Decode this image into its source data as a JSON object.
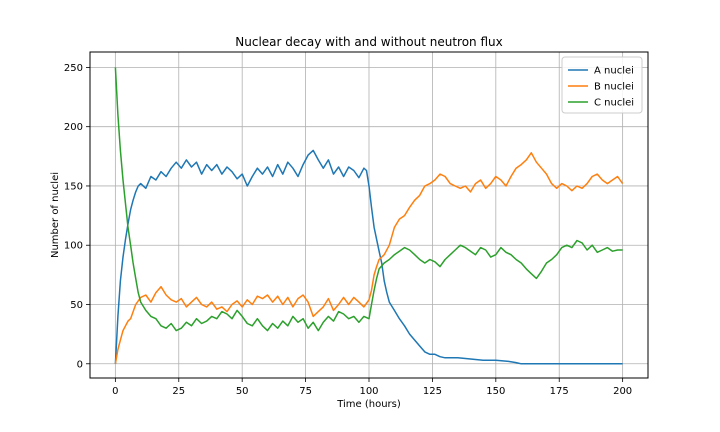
{
  "chart_data": {
    "type": "line",
    "title": "Nuclear decay with and without neutron flux",
    "xlabel": "Time (hours)",
    "ylabel": "Number of nuclei",
    "xlim": [
      -10,
      210
    ],
    "ylim": [
      -12,
      263
    ],
    "xticks": [
      0,
      25,
      50,
      75,
      100,
      125,
      150,
      175,
      200
    ],
    "yticks": [
      0,
      50,
      100,
      150,
      200,
      250
    ],
    "grid": true,
    "legend_position": "top-right",
    "series": [
      {
        "name": "A nuclei",
        "color": "#1f77b4",
        "points": [
          [
            0,
            0
          ],
          [
            1,
            40
          ],
          [
            2,
            70
          ],
          [
            3,
            90
          ],
          [
            4,
            105
          ],
          [
            5,
            118
          ],
          [
            6,
            130
          ],
          [
            7,
            138
          ],
          [
            8,
            145
          ],
          [
            9,
            150
          ],
          [
            10,
            152
          ],
          [
            12,
            148
          ],
          [
            14,
            158
          ],
          [
            16,
            155
          ],
          [
            18,
            162
          ],
          [
            20,
            158
          ],
          [
            22,
            165
          ],
          [
            24,
            170
          ],
          [
            26,
            165
          ],
          [
            28,
            172
          ],
          [
            30,
            166
          ],
          [
            32,
            170
          ],
          [
            34,
            160
          ],
          [
            36,
            168
          ],
          [
            38,
            163
          ],
          [
            40,
            168
          ],
          [
            42,
            160
          ],
          [
            44,
            166
          ],
          [
            46,
            162
          ],
          [
            48,
            156
          ],
          [
            50,
            160
          ],
          [
            52,
            150
          ],
          [
            54,
            158
          ],
          [
            56,
            165
          ],
          [
            58,
            160
          ],
          [
            60,
            166
          ],
          [
            62,
            158
          ],
          [
            64,
            168
          ],
          [
            66,
            160
          ],
          [
            68,
            170
          ],
          [
            70,
            165
          ],
          [
            72,
            158
          ],
          [
            74,
            168
          ],
          [
            76,
            176
          ],
          [
            78,
            180
          ],
          [
            80,
            172
          ],
          [
            82,
            165
          ],
          [
            84,
            172
          ],
          [
            86,
            160
          ],
          [
            88,
            166
          ],
          [
            90,
            158
          ],
          [
            92,
            166
          ],
          [
            94,
            163
          ],
          [
            96,
            157
          ],
          [
            98,
            165
          ],
          [
            99,
            163
          ],
          [
            100,
            150
          ],
          [
            101,
            132
          ],
          [
            102,
            115
          ],
          [
            103,
            105
          ],
          [
            104,
            95
          ],
          [
            105,
            85
          ],
          [
            106,
            70
          ],
          [
            107,
            60
          ],
          [
            108,
            52
          ],
          [
            110,
            45
          ],
          [
            112,
            38
          ],
          [
            114,
            32
          ],
          [
            116,
            25
          ],
          [
            118,
            20
          ],
          [
            120,
            15
          ],
          [
            122,
            10
          ],
          [
            124,
            8
          ],
          [
            126,
            8
          ],
          [
            128,
            6
          ],
          [
            130,
            5
          ],
          [
            135,
            5
          ],
          [
            140,
            4
          ],
          [
            145,
            3
          ],
          [
            150,
            3
          ],
          [
            155,
            2
          ],
          [
            158,
            1
          ],
          [
            160,
            0
          ],
          [
            170,
            0
          ],
          [
            180,
            0
          ],
          [
            190,
            0
          ],
          [
            200,
            0
          ]
        ]
      },
      {
        "name": "B nuclei",
        "color": "#ff7f0e",
        "points": [
          [
            0,
            0
          ],
          [
            1,
            12
          ],
          [
            2,
            20
          ],
          [
            3,
            28
          ],
          [
            4,
            32
          ],
          [
            5,
            36
          ],
          [
            6,
            38
          ],
          [
            8,
            50
          ],
          [
            10,
            56
          ],
          [
            12,
            58
          ],
          [
            14,
            52
          ],
          [
            16,
            60
          ],
          [
            18,
            65
          ],
          [
            20,
            58
          ],
          [
            22,
            54
          ],
          [
            24,
            52
          ],
          [
            26,
            55
          ],
          [
            28,
            48
          ],
          [
            30,
            52
          ],
          [
            32,
            56
          ],
          [
            34,
            50
          ],
          [
            36,
            48
          ],
          [
            38,
            52
          ],
          [
            40,
            46
          ],
          [
            42,
            48
          ],
          [
            44,
            44
          ],
          [
            46,
            50
          ],
          [
            48,
            53
          ],
          [
            50,
            48
          ],
          [
            52,
            54
          ],
          [
            54,
            50
          ],
          [
            56,
            57
          ],
          [
            58,
            55
          ],
          [
            60,
            58
          ],
          [
            62,
            52
          ],
          [
            64,
            57
          ],
          [
            66,
            50
          ],
          [
            68,
            56
          ],
          [
            70,
            48
          ],
          [
            72,
            55
          ],
          [
            74,
            58
          ],
          [
            76,
            52
          ],
          [
            78,
            40
          ],
          [
            80,
            44
          ],
          [
            82,
            48
          ],
          [
            84,
            55
          ],
          [
            86,
            45
          ],
          [
            88,
            50
          ],
          [
            90,
            56
          ],
          [
            92,
            50
          ],
          [
            94,
            56
          ],
          [
            96,
            52
          ],
          [
            98,
            48
          ],
          [
            100,
            54
          ],
          [
            101,
            62
          ],
          [
            102,
            75
          ],
          [
            103,
            82
          ],
          [
            104,
            88
          ],
          [
            106,
            92
          ],
          [
            108,
            100
          ],
          [
            110,
            115
          ],
          [
            112,
            122
          ],
          [
            114,
            125
          ],
          [
            116,
            132
          ],
          [
            118,
            138
          ],
          [
            120,
            142
          ],
          [
            122,
            150
          ],
          [
            124,
            152
          ],
          [
            126,
            155
          ],
          [
            128,
            160
          ],
          [
            130,
            158
          ],
          [
            132,
            152
          ],
          [
            134,
            150
          ],
          [
            136,
            148
          ],
          [
            138,
            150
          ],
          [
            140,
            145
          ],
          [
            142,
            152
          ],
          [
            144,
            155
          ],
          [
            146,
            148
          ],
          [
            148,
            152
          ],
          [
            150,
            158
          ],
          [
            152,
            155
          ],
          [
            154,
            150
          ],
          [
            156,
            158
          ],
          [
            158,
            165
          ],
          [
            160,
            168
          ],
          [
            162,
            172
          ],
          [
            164,
            178
          ],
          [
            166,
            170
          ],
          [
            168,
            165
          ],
          [
            170,
            160
          ],
          [
            172,
            152
          ],
          [
            174,
            148
          ],
          [
            176,
            152
          ],
          [
            178,
            150
          ],
          [
            180,
            146
          ],
          [
            182,
            150
          ],
          [
            184,
            148
          ],
          [
            186,
            152
          ],
          [
            188,
            158
          ],
          [
            190,
            160
          ],
          [
            192,
            155
          ],
          [
            194,
            152
          ],
          [
            196,
            155
          ],
          [
            198,
            158
          ],
          [
            200,
            152
          ]
        ]
      },
      {
        "name": "C nuclei",
        "color": "#2ca02c",
        "points": [
          [
            0,
            250
          ],
          [
            1,
            210
          ],
          [
            2,
            180
          ],
          [
            3,
            155
          ],
          [
            4,
            135
          ],
          [
            5,
            115
          ],
          [
            6,
            100
          ],
          [
            7,
            85
          ],
          [
            8,
            72
          ],
          [
            9,
            60
          ],
          [
            10,
            52
          ],
          [
            12,
            45
          ],
          [
            14,
            40
          ],
          [
            16,
            38
          ],
          [
            18,
            32
          ],
          [
            20,
            30
          ],
          [
            22,
            34
          ],
          [
            24,
            28
          ],
          [
            26,
            30
          ],
          [
            28,
            35
          ],
          [
            30,
            32
          ],
          [
            32,
            38
          ],
          [
            34,
            34
          ],
          [
            36,
            36
          ],
          [
            38,
            40
          ],
          [
            40,
            38
          ],
          [
            42,
            44
          ],
          [
            44,
            42
          ],
          [
            46,
            38
          ],
          [
            48,
            45
          ],
          [
            50,
            40
          ],
          [
            52,
            34
          ],
          [
            54,
            32
          ],
          [
            56,
            38
          ],
          [
            58,
            32
          ],
          [
            60,
            28
          ],
          [
            62,
            34
          ],
          [
            64,
            30
          ],
          [
            66,
            36
          ],
          [
            68,
            32
          ],
          [
            70,
            40
          ],
          [
            72,
            35
          ],
          [
            74,
            38
          ],
          [
            76,
            30
          ],
          [
            78,
            35
          ],
          [
            80,
            28
          ],
          [
            82,
            35
          ],
          [
            84,
            40
          ],
          [
            86,
            36
          ],
          [
            88,
            44
          ],
          [
            90,
            42
          ],
          [
            92,
            38
          ],
          [
            94,
            40
          ],
          [
            96,
            35
          ],
          [
            98,
            40
          ],
          [
            100,
            38
          ],
          [
            101,
            50
          ],
          [
            102,
            62
          ],
          [
            103,
            72
          ],
          [
            104,
            80
          ],
          [
            106,
            85
          ],
          [
            108,
            88
          ],
          [
            110,
            92
          ],
          [
            112,
            95
          ],
          [
            114,
            98
          ],
          [
            116,
            96
          ],
          [
            118,
            92
          ],
          [
            120,
            88
          ],
          [
            122,
            85
          ],
          [
            124,
            88
          ],
          [
            126,
            86
          ],
          [
            128,
            82
          ],
          [
            130,
            88
          ],
          [
            132,
            92
          ],
          [
            134,
            96
          ],
          [
            136,
            100
          ],
          [
            138,
            98
          ],
          [
            140,
            95
          ],
          [
            142,
            92
          ],
          [
            144,
            98
          ],
          [
            146,
            96
          ],
          [
            148,
            90
          ],
          [
            150,
            92
          ],
          [
            152,
            98
          ],
          [
            154,
            94
          ],
          [
            156,
            92
          ],
          [
            158,
            88
          ],
          [
            160,
            85
          ],
          [
            162,
            80
          ],
          [
            164,
            76
          ],
          [
            166,
            72
          ],
          [
            168,
            78
          ],
          [
            170,
            85
          ],
          [
            172,
            88
          ],
          [
            174,
            92
          ],
          [
            176,
            98
          ],
          [
            178,
            100
          ],
          [
            180,
            98
          ],
          [
            182,
            104
          ],
          [
            184,
            102
          ],
          [
            186,
            96
          ],
          [
            188,
            100
          ],
          [
            190,
            94
          ],
          [
            192,
            96
          ],
          [
            194,
            98
          ],
          [
            196,
            95
          ],
          [
            198,
            96
          ],
          [
            200,
            96
          ]
        ]
      }
    ]
  }
}
